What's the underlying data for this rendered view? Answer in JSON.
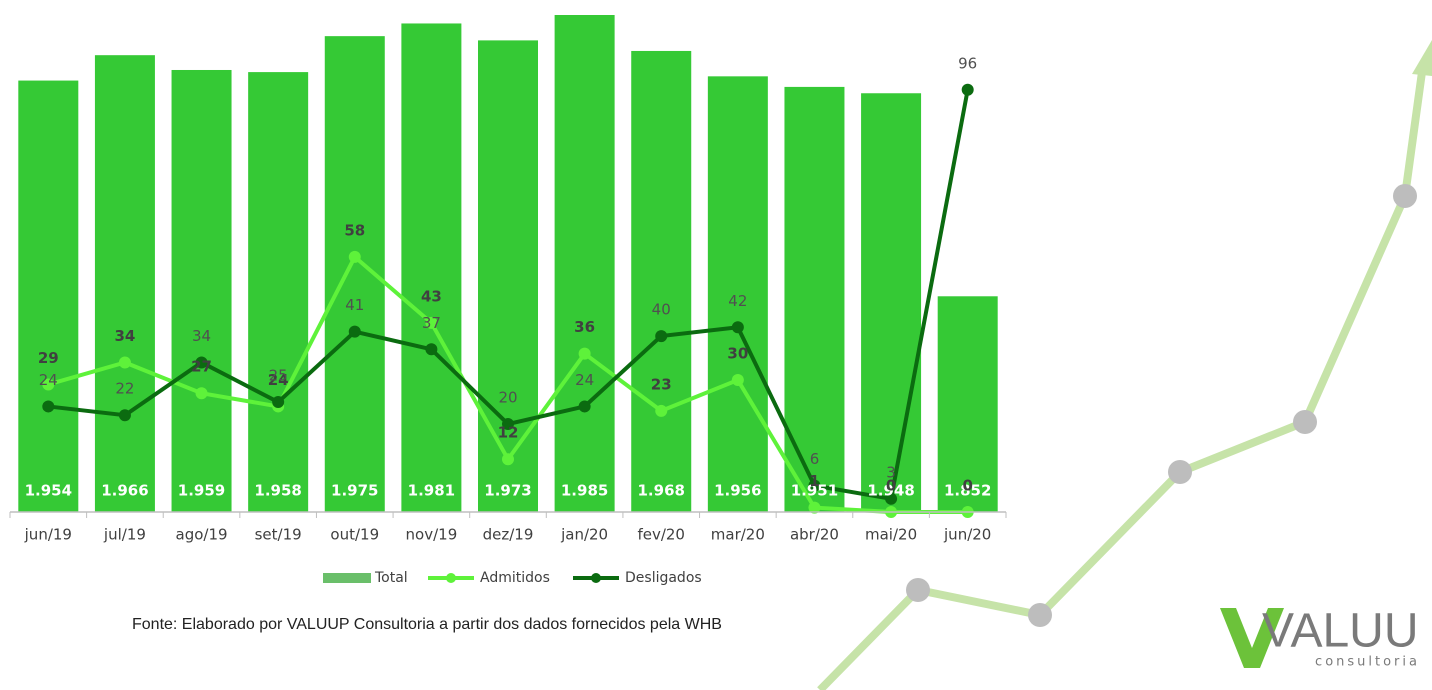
{
  "chart_data": {
    "type": "bar-line",
    "categories": [
      "jun/19",
      "jul/19",
      "ago/19",
      "set/19",
      "out/19",
      "nov/19",
      "dez/19",
      "jan/20",
      "fev/20",
      "mar/20",
      "abr/20",
      "mai/20",
      "jun/20"
    ],
    "series": [
      {
        "name": "Total",
        "type": "bar",
        "color": "#35c935",
        "values": [
          1954,
          1966,
          1959,
          1958,
          1975,
          1981,
          1973,
          1985,
          1968,
          1956,
          1951,
          1948,
          1852
        ],
        "value_labels": [
          "1.954",
          "1.966",
          "1.959",
          "1.958",
          "1.975",
          "1.981",
          "1.973",
          "1.985",
          "1.968",
          "1.956",
          "1.951",
          "1.948",
          "1.852"
        ]
      },
      {
        "name": "Admitidos",
        "type": "line",
        "axis": "y2",
        "color": "#5ef23a",
        "values": [
          29,
          34,
          27,
          24,
          58,
          43,
          12,
          36,
          23,
          30,
          1,
          0,
          0
        ]
      },
      {
        "name": "Desligados",
        "type": "line",
        "axis": "y2",
        "color": "#0b6b10",
        "values": [
          24,
          22,
          34,
          25,
          41,
          37,
          20,
          24,
          40,
          42,
          6,
          3,
          96
        ]
      }
    ],
    "ylim": [
      1750,
      1985
    ],
    "y2lim": [
      0,
      113
    ],
    "legend": "bottom",
    "source": "Fonte:  Elaborado por VALUUP Consultoria a partir dos dados fornecidos pela WHB",
    "logo": {
      "name": "VALUU",
      "tagline": "consultoria"
    }
  }
}
